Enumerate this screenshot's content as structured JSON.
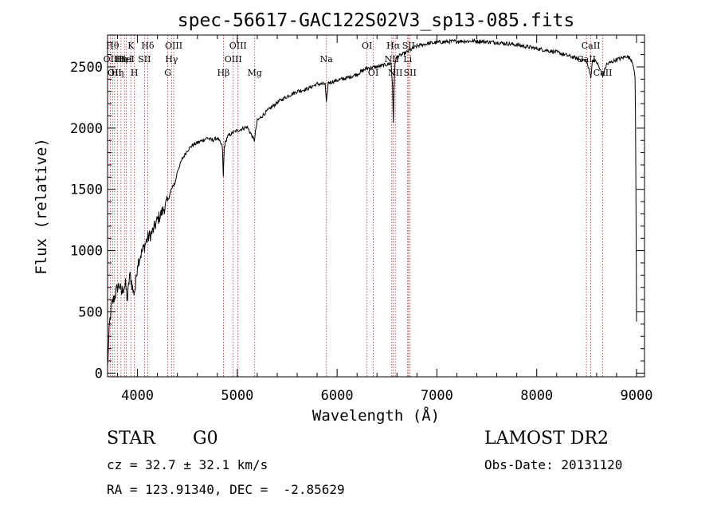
{
  "chart_data": {
    "type": "line",
    "title": "spec-56617-GAC122S02V3_sp13-085.fits",
    "xlabel": "Wavelength (Å)",
    "ylabel": "Flux (relative)",
    "xlim": [
      3700,
      9080
    ],
    "ylim": [
      -30,
      2760
    ],
    "xticks": [
      4000,
      5000,
      6000,
      7000,
      8000,
      9000
    ],
    "yticks": [
      0,
      500,
      1000,
      1500,
      2000,
      2500
    ],
    "grid": false,
    "series": [
      {
        "x": [
          3700,
          3720,
          3740,
          3760,
          3780,
          3800,
          3820,
          3840,
          3860,
          3880,
          3900,
          3920,
          3940,
          3960,
          3980,
          4000,
          4050,
          4100,
          4150,
          4200,
          4250,
          4300,
          4340,
          4380,
          4400,
          4450,
          4500,
          4550,
          4600,
          4650,
          4700,
          4750,
          4800,
          4850,
          4860,
          4870,
          4900,
          4950,
          5000,
          5100,
          5170,
          5200,
          5300,
          5400,
          5500,
          5600,
          5700,
          5800,
          5880,
          5893,
          5910,
          6000,
          6100,
          6200,
          6300,
          6400,
          6500,
          6540,
          6555,
          6563,
          6570,
          6580,
          6600,
          6700,
          6800,
          6900,
          7000,
          7200,
          7400,
          7600,
          7800,
          8000,
          8200,
          8400,
          8498,
          8542,
          8560,
          8600,
          8662,
          8700,
          8800,
          8850,
          8900,
          8950,
          8970,
          8985,
          8990,
          9000
        ],
        "y": [
          50,
          400,
          550,
          600,
          650,
          700,
          720,
          650,
          700,
          720,
          600,
          800,
          750,
          650,
          700,
          900,
          1000,
          1100,
          1150,
          1250,
          1320,
          1400,
          1500,
          1560,
          1650,
          1750,
          1820,
          1860,
          1880,
          1900,
          1920,
          1900,
          1920,
          1850,
          1600,
          1850,
          1930,
          1960,
          1980,
          2010,
          1900,
          2060,
          2140,
          2210,
          2260,
          2300,
          2320,
          2360,
          2360,
          2200,
          2370,
          2390,
          2410,
          2440,
          2490,
          2500,
          2520,
          2530,
          2350,
          2050,
          2300,
          2540,
          2580,
          2620,
          2670,
          2690,
          2700,
          2710,
          2710,
          2700,
          2680,
          2650,
          2620,
          2570,
          2550,
          2420,
          2560,
          2540,
          2430,
          2520,
          2560,
          2570,
          2590,
          2560,
          2510,
          2400,
          2100,
          420
        ]
      }
    ],
    "lines": [
      {
        "x": 3728,
        "labels": [
          "OII"
        ],
        "row": 2
      },
      {
        "x": 3750,
        "labels": [
          "Hθ"
        ],
        "row": 1
      },
      {
        "x": 3771,
        "labels": [
          "OII"
        ],
        "row": 3
      },
      {
        "x": 3798,
        "labels": [
          "Hη"
        ],
        "row": 3
      },
      {
        "x": 3835,
        "labels": [
          "Hη"
        ],
        "row": 2
      },
      {
        "x": 3869,
        "labels": [
          "HeI"
        ],
        "row": 2
      },
      {
        "x": 3889,
        "labels": [
          "HeI"
        ],
        "row": 2
      },
      {
        "x": 3934,
        "labels": [
          "K"
        ],
        "row": 1
      },
      {
        "x": 3969,
        "labels": [
          "H"
        ],
        "row": 3
      },
      {
        "x": 4070,
        "labels": [
          "SII"
        ],
        "row": 2
      },
      {
        "x": 4102,
        "labels": [
          "Hδ"
        ],
        "row": 1
      },
      {
        "x": 4304,
        "labels": [
          "G"
        ],
        "row": 3
      },
      {
        "x": 4341,
        "labels": [
          "Hγ"
        ],
        "row": 2
      },
      {
        "x": 4363,
        "labels": [
          "OIII"
        ],
        "row": 1
      },
      {
        "x": 4861,
        "labels": [
          "Hβ"
        ],
        "row": 3
      },
      {
        "x": 4959,
        "labels": [
          "OIII"
        ],
        "row": 2
      },
      {
        "x": 5007,
        "labels": [
          "OIII"
        ],
        "row": 1
      },
      {
        "x": 5175,
        "labels": [
          "Mg"
        ],
        "row": 3
      },
      {
        "x": 5893,
        "labels": [
          "Na"
        ],
        "row": 2
      },
      {
        "x": 6300,
        "labels": [
          "OI"
        ],
        "row": 1
      },
      {
        "x": 6363,
        "labels": [
          "OI"
        ],
        "row": 3
      },
      {
        "x": 6548,
        "labels": [
          "NII"
        ],
        "row": 2
      },
      {
        "x": 6563,
        "labels": [
          "Hα"
        ],
        "row": 1
      },
      {
        "x": 6583,
        "labels": [
          "NII"
        ],
        "row": 3
      },
      {
        "x": 6707,
        "labels": [
          "Li"
        ],
        "row": 2
      },
      {
        "x": 6716,
        "labels": [
          "SII"
        ],
        "row": 1
      },
      {
        "x": 6731,
        "labels": [
          "SII"
        ],
        "row": 3
      },
      {
        "x": 8498,
        "labels": [
          "CaII"
        ],
        "row": 2
      },
      {
        "x": 8542,
        "labels": [
          "CaII"
        ],
        "row": 1
      },
      {
        "x": 8662,
        "labels": [
          "CaII"
        ],
        "row": 3
      }
    ]
  },
  "info": {
    "class_label": "STAR",
    "subclass_label": "G0",
    "survey_label": "LAMOST DR2",
    "redshift_text": "cz = 32.7 ± 32.1 km/s",
    "obs_date_text": "Obs-Date: 20131120",
    "coords_text": "RA = 123.91340, DEC =  -2.85629"
  }
}
